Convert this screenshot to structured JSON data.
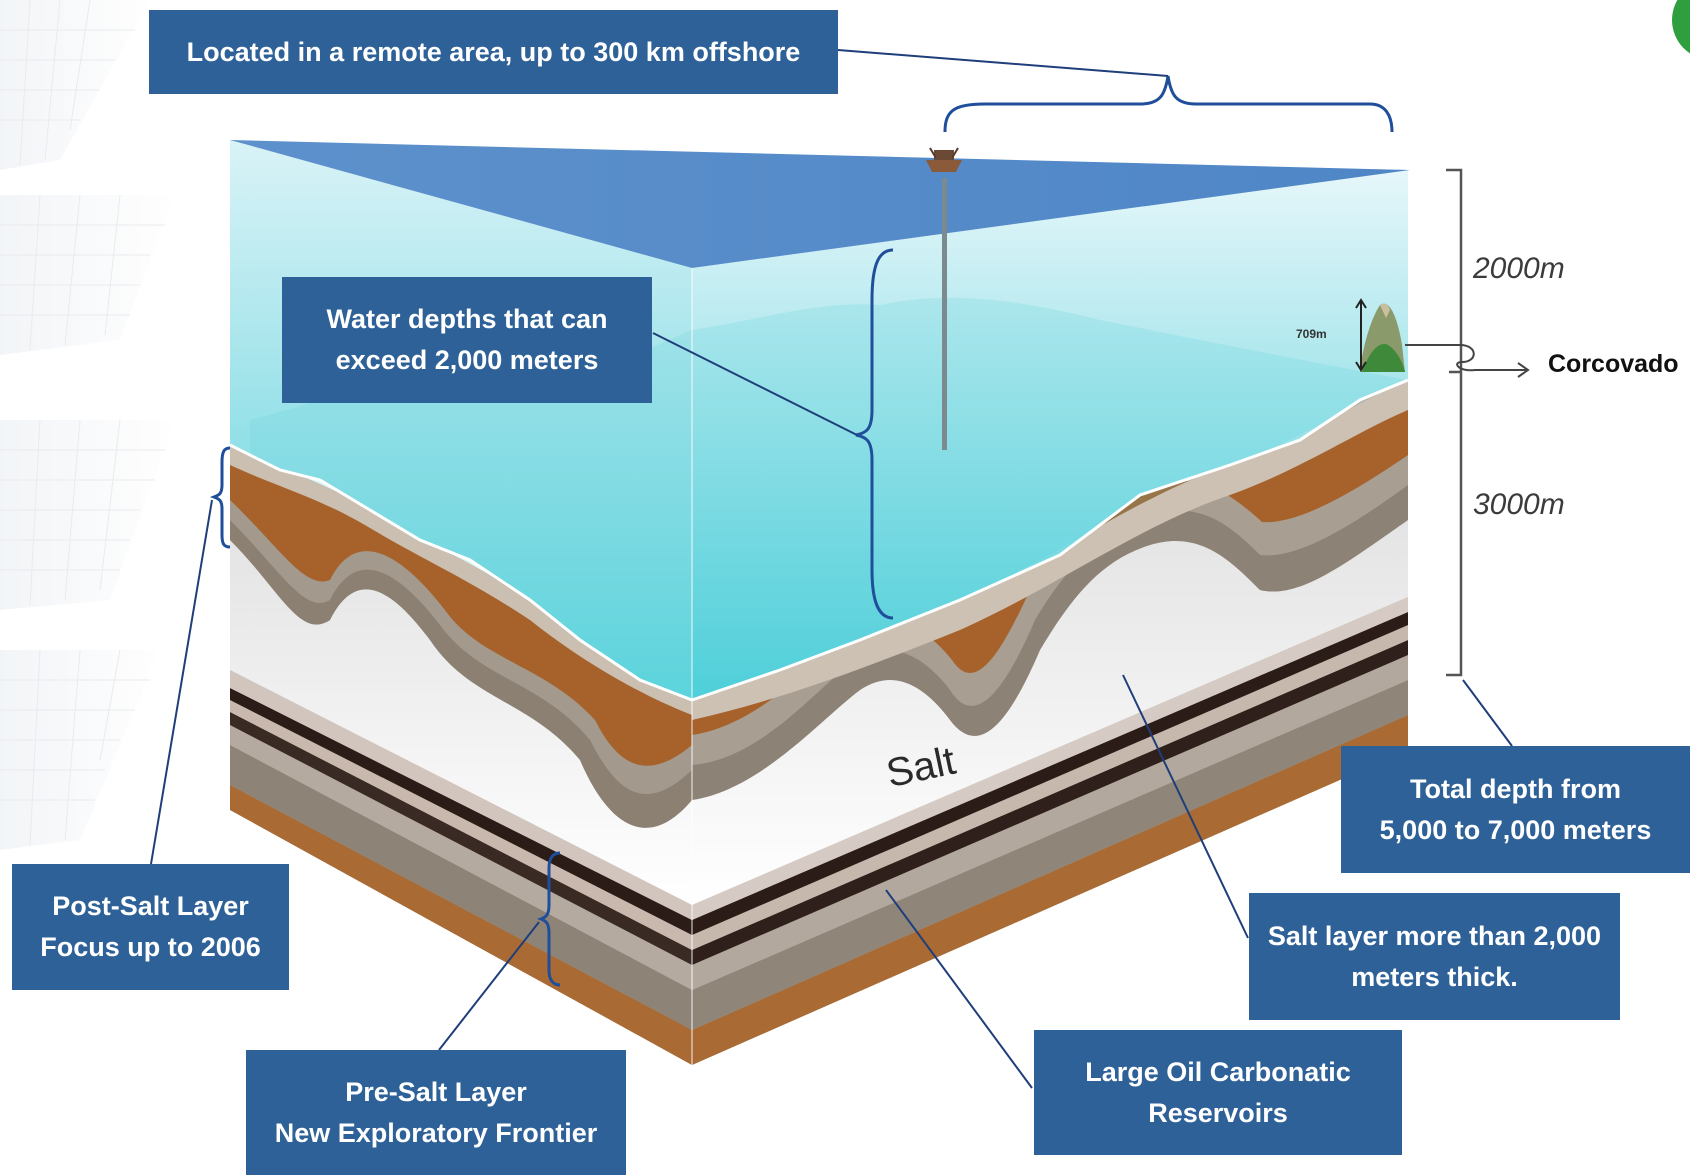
{
  "callouts": {
    "offshore": "Located in a remote area, up to 300 km offshore",
    "water_line1": "Water depths that can",
    "water_line2": "exceed 2,000 meters",
    "total_line1": "Total depth from",
    "total_line2": "5,000 to 7,000 meters",
    "salt_line1": "Salt layer more than 2,000",
    "salt_line2": "meters thick.",
    "reservoirs_line1": "Large Oil Carbonatic",
    "reservoirs_line2": "Reservoirs",
    "postsalt_line1": "Post-Salt Layer",
    "postsalt_line2": "Focus up to 2006",
    "presalt_line1": "Pre-Salt Layer",
    "presalt_line2": "New Exploratory Frontier"
  },
  "labels": {
    "depth_upper": "2000m",
    "depth_lower": "3000m",
    "corcovado": "Corcovado",
    "corcovado_height": "709m",
    "salt": "Salt"
  },
  "colors": {
    "callout_bg": "#2e6198",
    "water_surface": "#5b8fcb",
    "water_top": "#d6f1f6",
    "water_bottom": "#55d4dd",
    "sediment_brown": "#a6622a",
    "salt": "#f2f2f2",
    "bracket_blue": "#1f4e9b",
    "accent_green": "#2e9e3e"
  }
}
